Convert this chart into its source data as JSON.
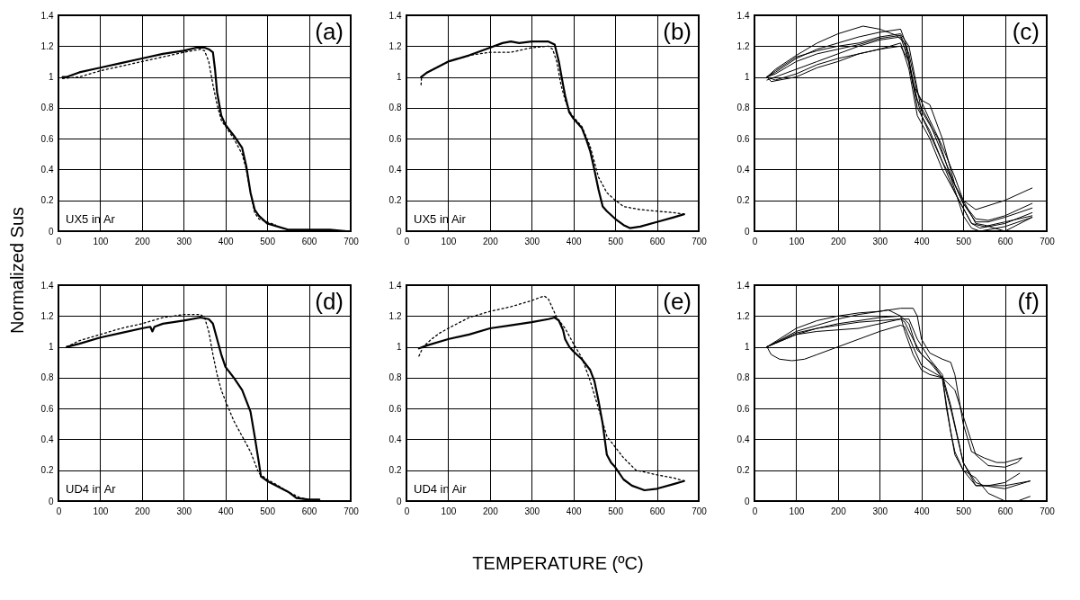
{
  "chart_data": [
    {
      "type": "line",
      "ylabel": "Normalized Sus",
      "annotations": [
        "(a)",
        "UX5 in Ar"
      ],
      "xlim": [
        0,
        700
      ],
      "xticks": [
        0,
        100,
        200,
        300,
        400,
        500,
        600,
        700
      ],
      "ylim": [
        0,
        1.4
      ],
      "yticks": [
        0,
        0.2,
        0.4,
        0.6,
        0.8,
        1,
        1.2,
        1.4
      ],
      "grid": true,
      "series": [
        {
          "color": "#000000",
          "line_style": "solid",
          "x": [
            10,
            20,
            50,
            100,
            150,
            200,
            250,
            300,
            330,
            350,
            360,
            370,
            375,
            380,
            390,
            400,
            420,
            440,
            450,
            460,
            470,
            480,
            500,
            550,
            600,
            650,
            690
          ],
          "values": [
            1.0,
            1.0,
            1.03,
            1.06,
            1.09,
            1.12,
            1.15,
            1.17,
            1.19,
            1.19,
            1.18,
            1.16,
            1.05,
            0.9,
            0.75,
            0.69,
            0.62,
            0.54,
            0.42,
            0.25,
            0.14,
            0.1,
            0.05,
            0.01,
            0.01,
            0.01,
            0.0
          ]
        },
        {
          "color": "#000000",
          "line_style": "dotted",
          "x": [
            10,
            50,
            100,
            150,
            200,
            250,
            300,
            340,
            350,
            360,
            370,
            380,
            390,
            400,
            420,
            440,
            450,
            460,
            470,
            480,
            500,
            520
          ],
          "values": [
            0.99,
            1.0,
            1.04,
            1.07,
            1.1,
            1.13,
            1.16,
            1.18,
            1.17,
            1.1,
            0.95,
            0.82,
            0.72,
            0.68,
            0.6,
            0.5,
            0.4,
            0.25,
            0.12,
            0.08,
            0.06,
            0.04
          ]
        }
      ]
    },
    {
      "type": "line",
      "annotations": [
        "(b)",
        "UX5 in Air"
      ],
      "xlim": [
        0,
        700
      ],
      "xticks": [
        0,
        100,
        200,
        300,
        400,
        500,
        600,
        700
      ],
      "ylim": [
        0,
        1.4
      ],
      "yticks": [
        0,
        0.2,
        0.4,
        0.6,
        0.8,
        1,
        1.2,
        1.4
      ],
      "grid": true,
      "series": [
        {
          "color": "#000000",
          "line_style": "solid",
          "x": [
            35,
            50,
            100,
            150,
            200,
            230,
            250,
            270,
            300,
            340,
            355,
            365,
            375,
            380,
            390,
            400,
            420,
            430,
            440,
            450,
            460,
            470,
            480,
            500,
            520,
            535,
            560,
            600,
            640,
            665
          ],
          "values": [
            1.0,
            1.03,
            1.1,
            1.14,
            1.19,
            1.22,
            1.23,
            1.22,
            1.23,
            1.23,
            1.21,
            1.1,
            0.95,
            0.88,
            0.77,
            0.73,
            0.67,
            0.6,
            0.52,
            0.4,
            0.27,
            0.16,
            0.13,
            0.08,
            0.04,
            0.02,
            0.03,
            0.06,
            0.09,
            0.11
          ]
        },
        {
          "color": "#000000",
          "line_style": "dotted",
          "x": [
            35,
            36,
            50,
            100,
            150,
            200,
            250,
            300,
            340,
            350,
            360,
            370,
            380,
            390,
            400,
            420,
            440,
            460,
            480,
            500,
            520,
            560,
            600,
            640,
            665
          ],
          "values": [
            0.95,
            1.0,
            1.03,
            1.1,
            1.14,
            1.16,
            1.16,
            1.19,
            1.2,
            1.18,
            1.1,
            0.95,
            0.85,
            0.78,
            0.74,
            0.68,
            0.55,
            0.35,
            0.25,
            0.2,
            0.16,
            0.14,
            0.13,
            0.12,
            0.11
          ]
        }
      ]
    },
    {
      "type": "line",
      "annotations": [
        "(c)"
      ],
      "xlim": [
        0,
        700
      ],
      "xticks": [
        0,
        100,
        200,
        300,
        400,
        500,
        600,
        700
      ],
      "ylim": [
        0,
        1.4
      ],
      "yticks": [
        0,
        0.2,
        0.4,
        0.6,
        0.8,
        1,
        1.2,
        1.4
      ],
      "grid": true,
      "series": [
        {
          "color": "#000000",
          "line_style": "solid",
          "x": [
            30,
            50,
            100,
            150,
            200,
            260,
            300,
            340,
            360,
            380,
            400,
            450,
            500,
            530,
            600,
            665
          ],
          "values": [
            1.0,
            1.05,
            1.14,
            1.22,
            1.28,
            1.33,
            1.31,
            1.27,
            1.22,
            0.95,
            0.75,
            0.45,
            0.2,
            0.14,
            0.2,
            0.28
          ]
        },
        {
          "color": "#000000",
          "line_style": "solid",
          "x": [
            30,
            50,
            100,
            150,
            200,
            250,
            300,
            350,
            365,
            380,
            400,
            420,
            450,
            480,
            500,
            530,
            560,
            600,
            665
          ],
          "values": [
            1.0,
            1.03,
            1.12,
            1.18,
            1.22,
            1.26,
            1.29,
            1.31,
            1.2,
            0.95,
            0.85,
            0.82,
            0.6,
            0.3,
            0.18,
            0.08,
            0.07,
            0.1,
            0.18
          ]
        },
        {
          "color": "#000000",
          "line_style": "solid",
          "x": [
            30,
            50,
            100,
            150,
            200,
            250,
            300,
            350,
            370,
            390,
            420,
            450,
            480,
            500,
            530,
            560,
            600,
            665
          ],
          "values": [
            0.98,
            1.0,
            1.05,
            1.1,
            1.15,
            1.2,
            1.24,
            1.26,
            1.1,
            0.85,
            0.7,
            0.5,
            0.3,
            0.18,
            0.06,
            0.06,
            0.09,
            0.15
          ]
        },
        {
          "color": "#000000",
          "line_style": "solid",
          "x": [
            30,
            40,
            100,
            150,
            200,
            250,
            300,
            350,
            370,
            390,
            420,
            450,
            480,
            520,
            540,
            600,
            665
          ],
          "values": [
            1.0,
            0.97,
            1.0,
            1.06,
            1.1,
            1.15,
            1.18,
            1.2,
            1.1,
            0.8,
            0.65,
            0.45,
            0.25,
            0.05,
            0.02,
            0.05,
            0.12
          ]
        },
        {
          "color": "#000000",
          "line_style": "solid",
          "x": [
            30,
            50,
            100,
            150,
            200,
            250,
            300,
            350,
            370,
            390,
            420,
            450,
            500,
            520,
            550,
            600,
            665
          ],
          "values": [
            1.0,
            0.98,
            1.02,
            1.08,
            1.12,
            1.15,
            1.18,
            1.22,
            1.05,
            0.75,
            0.6,
            0.4,
            0.15,
            0.05,
            0.03,
            0.06,
            0.1
          ]
        },
        {
          "color": "#000000",
          "line_style": "solid",
          "x": [
            30,
            50,
            100,
            150,
            200,
            250,
            300,
            350,
            370,
            390,
            420,
            450,
            480,
            500,
            530,
            550,
            600,
            665
          ],
          "values": [
            1.0,
            1.02,
            1.1,
            1.15,
            1.18,
            1.21,
            1.25,
            1.27,
            1.15,
            0.9,
            0.72,
            0.55,
            0.35,
            0.2,
            0.05,
            0.04,
            0.0,
            0.09
          ]
        },
        {
          "color": "#000000",
          "line_style": "solid",
          "x": [
            30,
            50,
            100,
            150,
            200,
            250,
            300,
            350,
            370,
            400,
            440,
            470,
            500,
            520,
            540,
            600,
            665
          ],
          "values": [
            1.0,
            1.04,
            1.13,
            1.17,
            1.2,
            1.22,
            1.26,
            1.28,
            1.2,
            0.78,
            0.6,
            0.35,
            0.1,
            0.02,
            0.0,
            0.03,
            0.09
          ]
        }
      ]
    },
    {
      "type": "line",
      "annotations": [
        "(d)",
        "UD4 in Ar"
      ],
      "xlim": [
        0,
        700
      ],
      "xticks": [
        0,
        100,
        200,
        300,
        400,
        500,
        600,
        700
      ],
      "ylim": [
        0,
        1.4
      ],
      "yticks": [
        0,
        0.2,
        0.4,
        0.6,
        0.8,
        1,
        1.2,
        1.4
      ],
      "grid": true,
      "series": [
        {
          "color": "#000000",
          "line_style": "solid",
          "x": [
            20,
            50,
            100,
            150,
            200,
            220,
            225,
            230,
            250,
            300,
            340,
            360,
            370,
            380,
            390,
            400,
            420,
            440,
            460,
            470,
            480,
            485,
            500,
            550,
            570,
            600,
            625
          ],
          "values": [
            1.0,
            1.02,
            1.06,
            1.09,
            1.12,
            1.13,
            1.1,
            1.13,
            1.15,
            1.17,
            1.19,
            1.18,
            1.15,
            1.05,
            0.95,
            0.87,
            0.8,
            0.72,
            0.58,
            0.42,
            0.25,
            0.16,
            0.13,
            0.06,
            0.02,
            0.01,
            0.01
          ]
        },
        {
          "color": "#000000",
          "line_style": "dotted",
          "x": [
            20,
            50,
            100,
            150,
            200,
            250,
            300,
            340,
            350,
            360,
            370,
            380,
            390,
            400,
            420,
            440,
            460,
            480,
            500,
            520,
            550,
            580,
            600
          ],
          "values": [
            1.0,
            1.04,
            1.08,
            1.12,
            1.15,
            1.19,
            1.21,
            1.21,
            1.19,
            1.1,
            0.95,
            0.82,
            0.72,
            0.65,
            0.52,
            0.42,
            0.32,
            0.18,
            0.14,
            0.11,
            0.06,
            0.02,
            0.01
          ]
        }
      ]
    },
    {
      "type": "line",
      "xlabel": "TEMPERATURE (ºC)",
      "annotations": [
        "(e)",
        "UD4 in Air"
      ],
      "xlim": [
        0,
        700
      ],
      "xticks": [
        0,
        100,
        200,
        300,
        400,
        500,
        600,
        700
      ],
      "ylim": [
        0,
        1.4
      ],
      "yticks": [
        0,
        0.2,
        0.4,
        0.6,
        0.8,
        1,
        1.2,
        1.4
      ],
      "grid": true,
      "series": [
        {
          "color": "#000000",
          "line_style": "solid",
          "x": [
            30,
            50,
            100,
            150,
            200,
            250,
            300,
            340,
            355,
            365,
            375,
            380,
            390,
            400,
            420,
            440,
            450,
            460,
            470,
            480,
            490,
            500,
            520,
            540,
            560,
            570,
            600,
            640,
            665
          ],
          "values": [
            0.99,
            1.01,
            1.05,
            1.08,
            1.12,
            1.14,
            1.16,
            1.18,
            1.19,
            1.17,
            1.11,
            1.05,
            1.0,
            0.97,
            0.92,
            0.85,
            0.78,
            0.65,
            0.5,
            0.3,
            0.25,
            0.22,
            0.14,
            0.1,
            0.08,
            0.07,
            0.08,
            0.11,
            0.13
          ]
        },
        {
          "color": "#000000",
          "line_style": "dotted",
          "x": [
            30,
            40,
            60,
            80,
            100,
            150,
            200,
            250,
            300,
            320,
            330,
            340,
            350,
            360,
            380,
            400,
            420,
            440,
            460,
            480,
            500,
            520,
            550,
            600,
            640,
            665
          ],
          "values": [
            0.94,
            1.0,
            1.05,
            1.09,
            1.12,
            1.19,
            1.23,
            1.26,
            1.3,
            1.32,
            1.33,
            1.31,
            1.25,
            1.19,
            1.12,
            1.02,
            0.93,
            0.78,
            0.6,
            0.42,
            0.35,
            0.28,
            0.2,
            0.17,
            0.15,
            0.13
          ]
        }
      ]
    },
    {
      "type": "line",
      "annotations": [
        "(f)"
      ],
      "xlim": [
        0,
        700
      ],
      "xticks": [
        0,
        100,
        200,
        300,
        400,
        500,
        600,
        700
      ],
      "ylim": [
        0,
        1.4
      ],
      "yticks": [
        0,
        0.2,
        0.4,
        0.6,
        0.8,
        1,
        1.2,
        1.4
      ],
      "grid": true,
      "series": [
        {
          "color": "#000000",
          "line_style": "solid",
          "x": [
            30,
            40,
            60,
            90,
            120,
            150,
            200,
            250,
            300,
            350,
            360,
            380,
            400,
            450,
            470,
            500,
            530,
            550,
            600,
            660
          ],
          "values": [
            1.0,
            0.95,
            0.92,
            0.91,
            0.92,
            0.95,
            1.0,
            1.05,
            1.1,
            1.14,
            1.13,
            1.0,
            0.88,
            0.8,
            0.6,
            0.25,
            0.12,
            0.1,
            0.08,
            0.13
          ]
        },
        {
          "color": "#000000",
          "line_style": "solid",
          "x": [
            30,
            100,
            150,
            200,
            250,
            300,
            350,
            380,
            390,
            400,
            420,
            450,
            470,
            480,
            500,
            520,
            550,
            580,
            600,
            640
          ],
          "values": [
            1.0,
            1.1,
            1.14,
            1.18,
            1.21,
            1.23,
            1.25,
            1.25,
            1.2,
            1.05,
            0.96,
            0.92,
            0.9,
            0.82,
            0.5,
            0.32,
            0.28,
            0.25,
            0.25,
            0.28
          ]
        },
        {
          "color": "#000000",
          "line_style": "solid",
          "x": [
            30,
            100,
            150,
            200,
            250,
            300,
            320,
            350,
            360,
            380,
            400,
            420,
            450,
            480,
            500,
            530,
            560,
            600,
            630,
            640
          ],
          "values": [
            1.0,
            1.12,
            1.17,
            1.2,
            1.22,
            1.23,
            1.24,
            1.2,
            1.1,
            0.95,
            0.85,
            0.82,
            0.8,
            0.72,
            0.55,
            0.3,
            0.23,
            0.22,
            0.25,
            0.28
          ]
        },
        {
          "color": "#000000",
          "line_style": "solid",
          "x": [
            30,
            100,
            150,
            200,
            250,
            300,
            350,
            370,
            390,
            420,
            450,
            470,
            500,
            530,
            560,
            600,
            660
          ],
          "values": [
            1.0,
            1.08,
            1.12,
            1.14,
            1.16,
            1.17,
            1.18,
            1.18,
            1.05,
            0.92,
            0.82,
            0.62,
            0.25,
            0.1,
            0.1,
            0.1,
            0.13
          ]
        },
        {
          "color": "#000000",
          "line_style": "solid",
          "x": [
            30,
            100,
            150,
            200,
            250,
            300,
            350,
            360,
            380,
            400,
            430,
            450,
            460,
            480,
            500,
            530,
            560,
            600,
            635
          ],
          "values": [
            1.0,
            1.08,
            1.1,
            1.11,
            1.12,
            1.15,
            1.18,
            1.16,
            1.05,
            0.95,
            0.88,
            0.8,
            0.6,
            0.3,
            0.2,
            0.1,
            0.1,
            0.12,
            0.18
          ]
        },
        {
          "color": "#000000",
          "line_style": "solid",
          "x": [
            30,
            100,
            150,
            200,
            250,
            300,
            350,
            370,
            390,
            420,
            450,
            470,
            480,
            500,
            530,
            560,
            600,
            630,
            660
          ],
          "values": [
            1.0,
            1.09,
            1.12,
            1.15,
            1.17,
            1.19,
            1.2,
            1.15,
            0.98,
            0.9,
            0.8,
            0.45,
            0.32,
            0.2,
            0.15,
            0.05,
            0.0,
            0.0,
            0.03
          ]
        }
      ]
    }
  ]
}
